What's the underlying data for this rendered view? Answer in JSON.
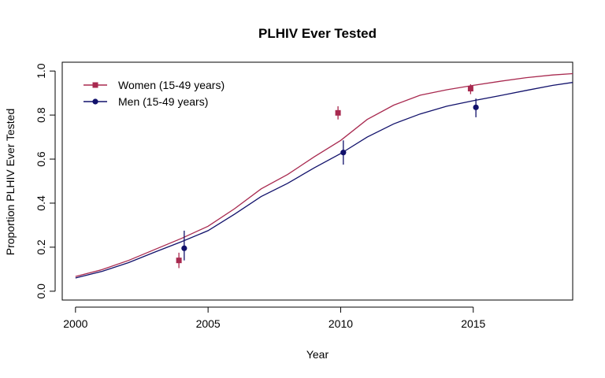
{
  "chart_data": {
    "type": "line",
    "title": "PLHIV Ever Tested",
    "xlabel": "Year",
    "ylabel": "Proportion PLHIV Ever Tested",
    "xlim": [
      1999.5,
      2018.75
    ],
    "ylim": [
      -0.04,
      1.04
    ],
    "x_ticks": [
      2000,
      2005,
      2010,
      2015
    ],
    "x_tick_labels": [
      "2000",
      "2005",
      "2010",
      "2015"
    ],
    "y_ticks": [
      0.0,
      0.2,
      0.4,
      0.6,
      0.8,
      1.0
    ],
    "y_tick_labels": [
      "0.0",
      "0.2",
      "0.4",
      "0.6",
      "0.8",
      "1.0"
    ],
    "grid": false,
    "legend_position": "top-left",
    "series": [
      {
        "name": "Women (15-49 years)",
        "color": "#a8294f",
        "marker": "square",
        "line": {
          "x": [
            2000,
            2001,
            2002,
            2003,
            2004,
            2005,
            2006,
            2007,
            2008,
            2009,
            2010,
            2011,
            2012,
            2013,
            2014,
            2015,
            2016,
            2017,
            2018,
            2018.75
          ],
          "y": [
            0.067,
            0.098,
            0.14,
            0.19,
            0.24,
            0.295,
            0.375,
            0.465,
            0.53,
            0.61,
            0.685,
            0.78,
            0.845,
            0.89,
            0.915,
            0.935,
            0.953,
            0.97,
            0.982,
            0.988
          ]
        },
        "points": [
          {
            "x": 2003.9,
            "y": 0.14,
            "lower": 0.105,
            "upper": 0.175
          },
          {
            "x": 2009.9,
            "y": 0.81,
            "lower": 0.78,
            "upper": 0.84
          },
          {
            "x": 2014.9,
            "y": 0.92,
            "lower": 0.895,
            "upper": 0.94
          }
        ]
      },
      {
        "name": "Men (15-49 years)",
        "color": "#11116b",
        "marker": "circle",
        "line": {
          "x": [
            2000,
            2001,
            2002,
            2003,
            2004,
            2005,
            2006,
            2007,
            2008,
            2009,
            2010,
            2011,
            2012,
            2013,
            2014,
            2015,
            2016,
            2017,
            2018,
            2018.75
          ],
          "y": [
            0.06,
            0.09,
            0.13,
            0.178,
            0.225,
            0.275,
            0.35,
            0.43,
            0.49,
            0.56,
            0.625,
            0.7,
            0.76,
            0.805,
            0.84,
            0.865,
            0.888,
            0.912,
            0.935,
            0.948
          ]
        },
        "points": [
          {
            "x": 2004.1,
            "y": 0.195,
            "lower": 0.14,
            "upper": 0.275
          },
          {
            "x": 2010.1,
            "y": 0.63,
            "lower": 0.575,
            "upper": 0.685
          },
          {
            "x": 2015.1,
            "y": 0.835,
            "lower": 0.79,
            "upper": 0.875
          }
        ]
      }
    ]
  }
}
